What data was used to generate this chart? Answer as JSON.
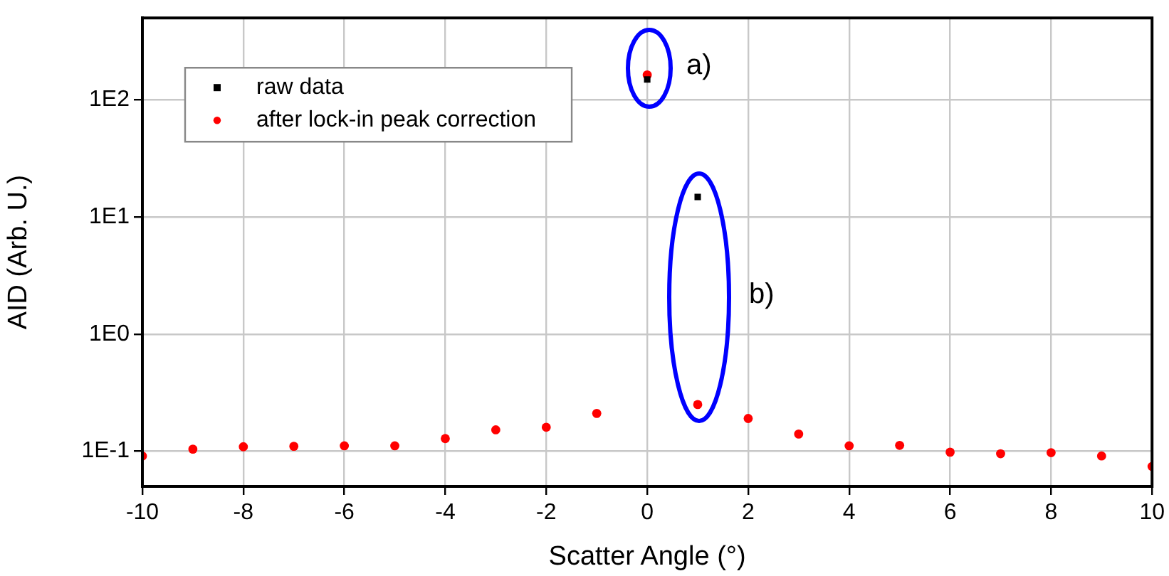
{
  "chart_data": {
    "type": "scatter",
    "xlabel": "Scatter Angle (°)",
    "ylabel": "AID (Arb. U.)",
    "x": [
      -10,
      -9,
      -8,
      -7,
      -6,
      -5,
      -4,
      -3,
      -2,
      -1,
      0,
      1,
      2,
      3,
      4,
      5,
      6,
      7,
      8,
      9,
      10
    ],
    "series": [
      {
        "name": "raw data",
        "color": "#000000",
        "marker": "square",
        "values": [
          null,
          null,
          null,
          null,
          null,
          null,
          null,
          null,
          null,
          null,
          149,
          14.8,
          null,
          null,
          null,
          null,
          null,
          null,
          null,
          null,
          null
        ]
      },
      {
        "name": "after lock-in peak correction",
        "color": "#ff0000",
        "marker": "circle",
        "values": [
          0.091,
          0.104,
          0.109,
          0.11,
          0.111,
          0.111,
          0.128,
          0.152,
          0.16,
          0.21,
          163,
          0.25,
          0.19,
          0.14,
          0.111,
          0.112,
          0.098,
          0.095,
          0.097,
          0.091,
          0.074
        ]
      }
    ],
    "log": "y",
    "xlim": [
      -10,
      10
    ],
    "xticks": [
      -10,
      -8,
      -6,
      -4,
      -2,
      0,
      2,
      4,
      6,
      8,
      10
    ],
    "ylim": [
      0.05,
      500
    ],
    "yticks": [
      {
        "value": 0.1,
        "label": "1E-1"
      },
      {
        "value": 1,
        "label": "1E0"
      },
      {
        "value": 10,
        "label": "1E1"
      },
      {
        "value": 100,
        "label": "1E2"
      }
    ],
    "grid": true,
    "legend": "top left",
    "annotations": [
      "a)",
      "b)"
    ]
  }
}
